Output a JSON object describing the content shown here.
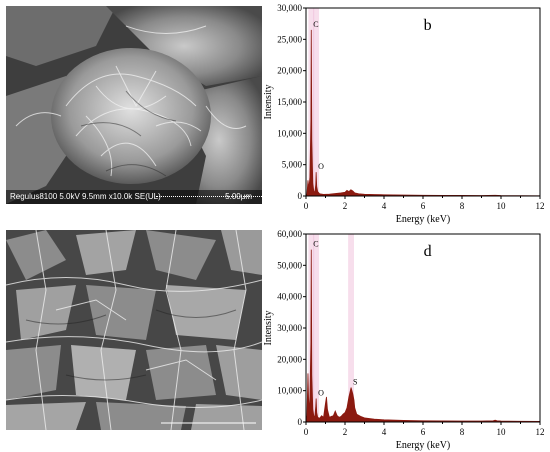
{
  "sem_images": [
    {
      "info": "Regulus8100 5.0kV 9.5mm x10.0k SE(UL)",
      "scale": "5.00μm"
    },
    {
      "info": "",
      "scale": ""
    }
  ],
  "colors": {
    "spectrum": "#8b1a10",
    "peak_fill": "#e8a0c8",
    "axis": "#000000"
  },
  "chart_data": [
    {
      "type": "area",
      "title": "b",
      "xlabel": "Energy (keV)",
      "ylabel": "Intensity",
      "xlim": [
        0,
        12
      ],
      "ylim": [
        0,
        30000
      ],
      "xticks": [
        0,
        2,
        4,
        6,
        8,
        10,
        12
      ],
      "yticks": [
        0,
        5000,
        10000,
        15000,
        20000,
        25000,
        30000
      ],
      "ytick_labels": [
        "0",
        "5,000",
        "10,000",
        "15,000",
        "20,000",
        "25,000",
        "30,000"
      ],
      "peaks": [
        {
          "label": "C",
          "x": 0.27,
          "y": 26500
        },
        {
          "label": "O",
          "x": 0.52,
          "y": 3800
        }
      ],
      "series": [
        {
          "x": [
            0.0,
            0.05,
            0.1,
            0.15,
            0.2,
            0.25,
            0.27,
            0.3,
            0.35,
            0.4,
            0.45,
            0.5,
            0.52,
            0.55,
            0.6,
            0.7,
            0.9,
            1.2,
            1.5,
            1.8,
            2.0,
            2.1,
            2.2,
            2.3,
            2.4,
            2.5,
            2.7,
            3.0,
            3.5,
            4.0,
            5.0,
            6.0,
            7.0,
            8.0,
            9.0,
            9.7,
            10.0,
            11.0,
            12.0
          ],
          "y": [
            0,
            300,
            2500,
            1200,
            3000,
            12000,
            26500,
            9000,
            2000,
            800,
            500,
            1800,
            3800,
            1500,
            700,
            350,
            250,
            300,
            400,
            500,
            600,
            900,
            700,
            1000,
            800,
            500,
            350,
            280,
            230,
            200,
            150,
            120,
            100,
            90,
            80,
            120,
            70,
            50,
            30
          ]
        }
      ]
    },
    {
      "type": "area",
      "title": "d",
      "xlabel": "Energy (keV)",
      "ylabel": "Intensity",
      "xlim": [
        0,
        12
      ],
      "ylim": [
        0,
        60000
      ],
      "xticks": [
        0,
        2,
        4,
        6,
        8,
        10,
        12
      ],
      "yticks": [
        0,
        10000,
        20000,
        30000,
        40000,
        50000,
        60000
      ],
      "ytick_labels": [
        "0",
        "10,000",
        "20,000",
        "30,000",
        "40,000",
        "50,000",
        "60,000"
      ],
      "peaks": [
        {
          "label": "C",
          "x": 0.27,
          "y": 55000
        },
        {
          "label": "O",
          "x": 0.52,
          "y": 7500
        },
        {
          "label": "S",
          "x": 2.31,
          "y": 11000
        }
      ],
      "series": [
        {
          "x": [
            0.0,
            0.05,
            0.1,
            0.15,
            0.2,
            0.25,
            0.27,
            0.3,
            0.35,
            0.4,
            0.45,
            0.5,
            0.52,
            0.55,
            0.6,
            0.7,
            0.8,
            0.9,
            1.0,
            1.05,
            1.1,
            1.2,
            1.3,
            1.4,
            1.5,
            1.6,
            1.7,
            1.8,
            1.9,
            2.0,
            2.1,
            2.2,
            2.31,
            2.4,
            2.46,
            2.5,
            2.6,
            2.8,
            3.0,
            3.5,
            4.0,
            5.0,
            6.0,
            7.0,
            8.0,
            9.0,
            9.6,
            9.7,
            9.8,
            10.0,
            11.0,
            12.0
          ],
          "y": [
            0,
            2000,
            15500,
            3000,
            8000,
            25000,
            55000,
            15000,
            4000,
            2000,
            1500,
            5000,
            7500,
            3000,
            1500,
            1200,
            2000,
            1500,
            6000,
            8000,
            4000,
            1500,
            1800,
            2000,
            3500,
            2000,
            1500,
            1800,
            2500,
            3000,
            4500,
            8000,
            11000,
            9000,
            7000,
            4500,
            2500,
            1800,
            1300,
            900,
            700,
            500,
            400,
            350,
            300,
            300,
            400,
            600,
            400,
            300,
            250,
            200
          ]
        }
      ]
    }
  ]
}
